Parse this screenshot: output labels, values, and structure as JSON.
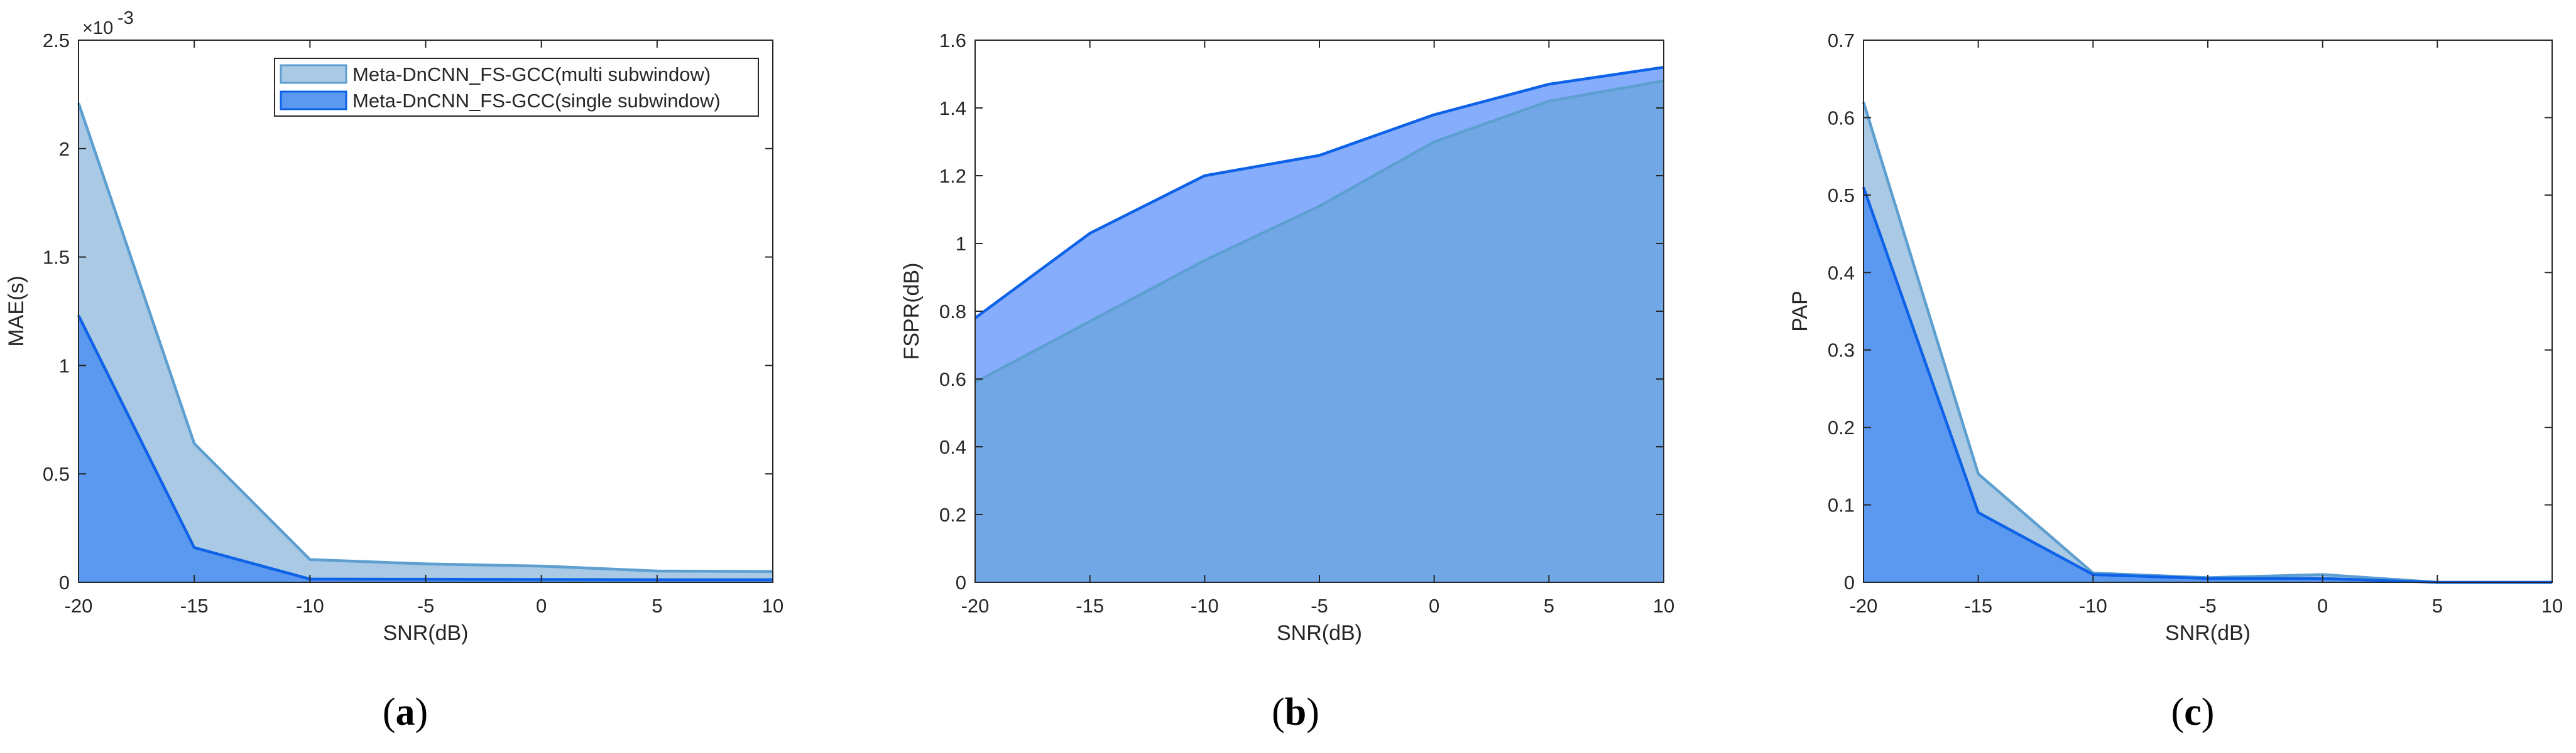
{
  "colors": {
    "multi_fill": "#a9c9e4",
    "multi_edge": "#5d9fd0",
    "single_fill": "#5b98ef",
    "single_edge": "#0d62e8",
    "single_fill_b": "#86adfb",
    "overlap_fill_b": "#72a7e6",
    "axis": "#262626"
  },
  "chart_data": [
    {
      "type": "area",
      "caption_letter": "a",
      "x": [
        -20,
        -15,
        -10,
        -5,
        0,
        5,
        10
      ],
      "xlim": [
        -20,
        10
      ],
      "ylim": [
        0,
        0.0025
      ],
      "xticks": [
        "-20",
        "-15",
        "-10",
        "-5",
        "0",
        "5",
        "10"
      ],
      "yticks": [
        "0",
        "0.5",
        "1",
        "1.5",
        "2",
        "2.5"
      ],
      "y_exponent_label": "×10",
      "y_exponent_power": "-3",
      "xlabel": "SNR(dB)",
      "ylabel": "MAE(s)",
      "legend": "top-right",
      "grid": false,
      "series": [
        {
          "name": "Meta-DnCNN_FS-GCC(multi subwindow)",
          "values": [
            0.00221,
            0.00064,
            0.000105,
            8.5e-05,
            7.5e-05,
            5.2e-05,
            5e-05
          ]
        },
        {
          "name": "Meta-DnCNN_FS-GCC(single subwindow)",
          "values": [
            0.00123,
            0.00016,
            1.5e-05,
            1.4e-05,
            1.3e-05,
            1.2e-05,
            1.2e-05
          ]
        }
      ]
    },
    {
      "type": "area",
      "caption_letter": "b",
      "x": [
        -20,
        -15,
        -10,
        -5,
        0,
        5,
        10
      ],
      "xlim": [
        -20,
        10
      ],
      "ylim": [
        0,
        1.6
      ],
      "xticks": [
        "-20",
        "-15",
        "-10",
        "-5",
        "0",
        "5",
        "10"
      ],
      "yticks": [
        "0",
        "0.2",
        "0.4",
        "0.6",
        "0.8",
        "1",
        "1.2",
        "1.4",
        "1.6"
      ],
      "xlabel": "SNR(dB)",
      "ylabel": "FSPR(dB)",
      "grid": false,
      "series": [
        {
          "name": "multi subwindow",
          "values": [
            0.59,
            0.77,
            0.95,
            1.11,
            1.3,
            1.42,
            1.48
          ]
        },
        {
          "name": "single subwindow",
          "values": [
            0.78,
            1.03,
            1.2,
            1.26,
            1.38,
            1.47,
            1.52
          ]
        }
      ]
    },
    {
      "type": "area",
      "caption_letter": "c",
      "x": [
        -20,
        -15,
        -10,
        -5,
        0,
        5,
        10
      ],
      "xlim": [
        -20,
        10
      ],
      "ylim": [
        0,
        0.7
      ],
      "xticks": [
        "-20",
        "-15",
        "-10",
        "-5",
        "0",
        "5",
        "10"
      ],
      "yticks": [
        "0",
        "0.1",
        "0.2",
        "0.3",
        "0.4",
        "0.5",
        "0.6",
        "0.7"
      ],
      "xlabel": "SNR(dB)",
      "ylabel": "PAP",
      "grid": false,
      "series": [
        {
          "name": "multi subwindow",
          "values": [
            0.62,
            0.14,
            0.012,
            0.006,
            0.01,
            0.0,
            0.0
          ]
        },
        {
          "name": "single subwindow",
          "values": [
            0.51,
            0.09,
            0.01,
            0.005,
            0.005,
            0.0,
            0.0
          ]
        }
      ]
    }
  ]
}
